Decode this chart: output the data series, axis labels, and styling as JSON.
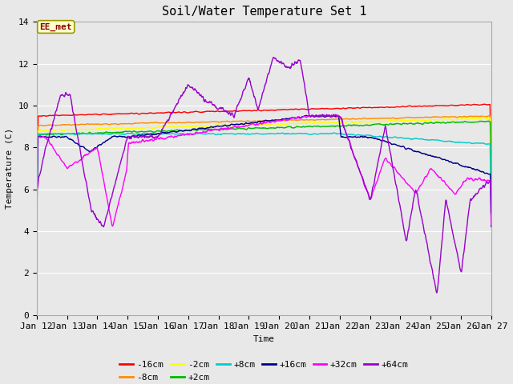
{
  "title": "Soil/Water Temperature Set 1",
  "xlabel": "Time",
  "ylabel": "Temperature (C)",
  "ylim": [
    0,
    14
  ],
  "yticks": [
    0,
    2,
    4,
    6,
    8,
    10,
    12,
    14
  ],
  "xlim": [
    12,
    27
  ],
  "xtick_labels": [
    "Jan 12",
    "Jan 13",
    "Jan 14",
    "Jan 15",
    "Jan 16",
    "Jan 17",
    "Jan 18",
    "Jan 19",
    "Jan 20",
    "Jan 21",
    "Jan 22",
    "Jan 23",
    "Jan 24",
    "Jan 25",
    "Jan 26",
    "Jan 27"
  ],
  "annotation_text": "EE_met",
  "annotation_color": "#8B0000",
  "annotation_bg": "#FFFFCC",
  "annotation_edge": "#999900",
  "series": [
    {
      "label": "-16cm",
      "color": "#FF0000"
    },
    {
      "label": "-8cm",
      "color": "#FF8C00"
    },
    {
      "label": "-2cm",
      "color": "#FFFF00"
    },
    {
      "label": "+2cm",
      "color": "#00BB00"
    },
    {
      "label": "+8cm",
      "color": "#00CCCC"
    },
    {
      "label": "+16cm",
      "color": "#00008B"
    },
    {
      "label": "+32cm",
      "color": "#FF00FF"
    },
    {
      "label": "+64cm",
      "color": "#9900CC"
    }
  ],
  "fig_bg": "#E8E8E8",
  "plot_bg": "#E8E8E8",
  "grid_color": "#FFFFFF",
  "font_family": "monospace",
  "title_fontsize": 11,
  "axis_fontsize": 8,
  "tick_fontsize": 8
}
